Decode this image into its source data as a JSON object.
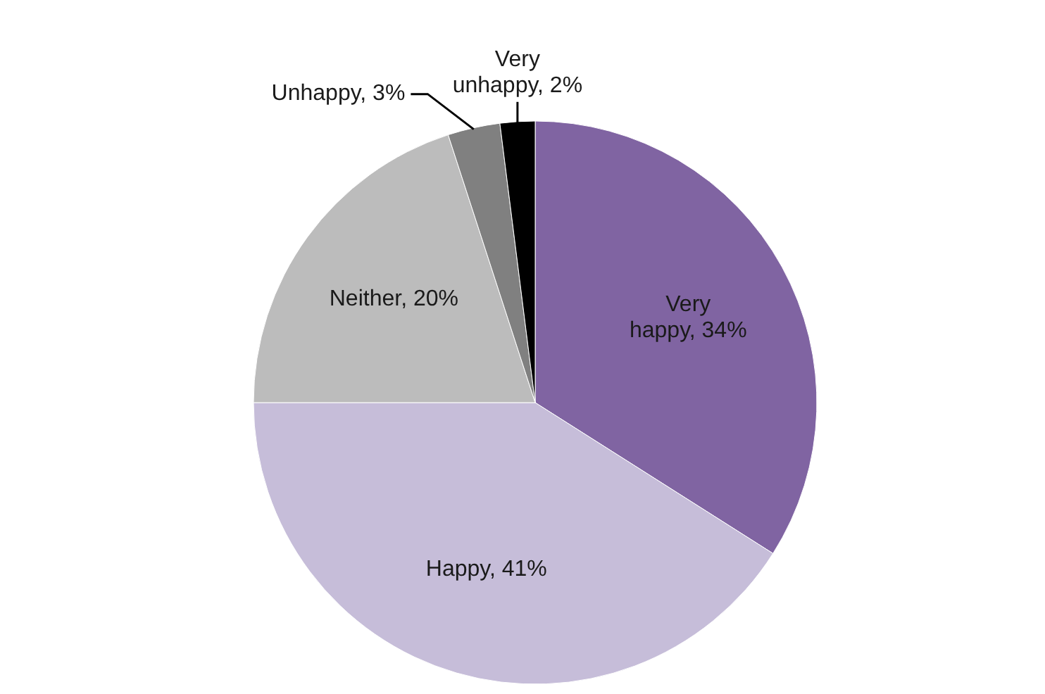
{
  "chart_data": {
    "type": "pie",
    "categories": [
      "Very happy",
      "Happy",
      "Neither",
      "Unhappy",
      "Very unhappy"
    ],
    "values": [
      34,
      41,
      20,
      3,
      2
    ],
    "colors": [
      "#8064a2",
      "#c6bdd9",
      "#bcbcbc",
      "#808080",
      "#000000"
    ],
    "value_labels": [
      "34%",
      "41%",
      "20%",
      "3%",
      "2%"
    ]
  }
}
